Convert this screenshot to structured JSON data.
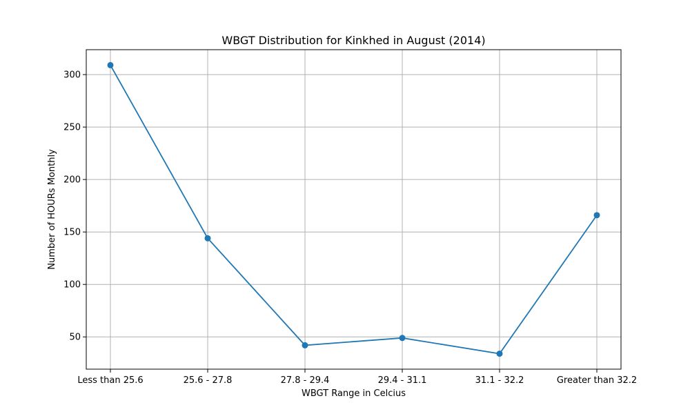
{
  "chart_data": {
    "type": "line",
    "title": "WBGT Distribution for Kinkhed in August (2014)",
    "xlabel": "WBGT Range in Celcius",
    "ylabel": "Number of HOURs Monthly",
    "categories": [
      "Less than 25.6",
      "25.6 - 27.8",
      "27.8 - 29.4",
      "29.4 - 31.1",
      "31.1 - 32.2",
      "Greater than 32.2"
    ],
    "series": [
      {
        "values": [
          309,
          144,
          42,
          49,
          34,
          166
        ]
      }
    ],
    "ylim": [
      19.25,
      323.75
    ],
    "yticks": [
      50,
      100,
      150,
      200,
      250,
      300
    ],
    "grid": true,
    "color": "#1f77b4",
    "marker": "circle"
  }
}
